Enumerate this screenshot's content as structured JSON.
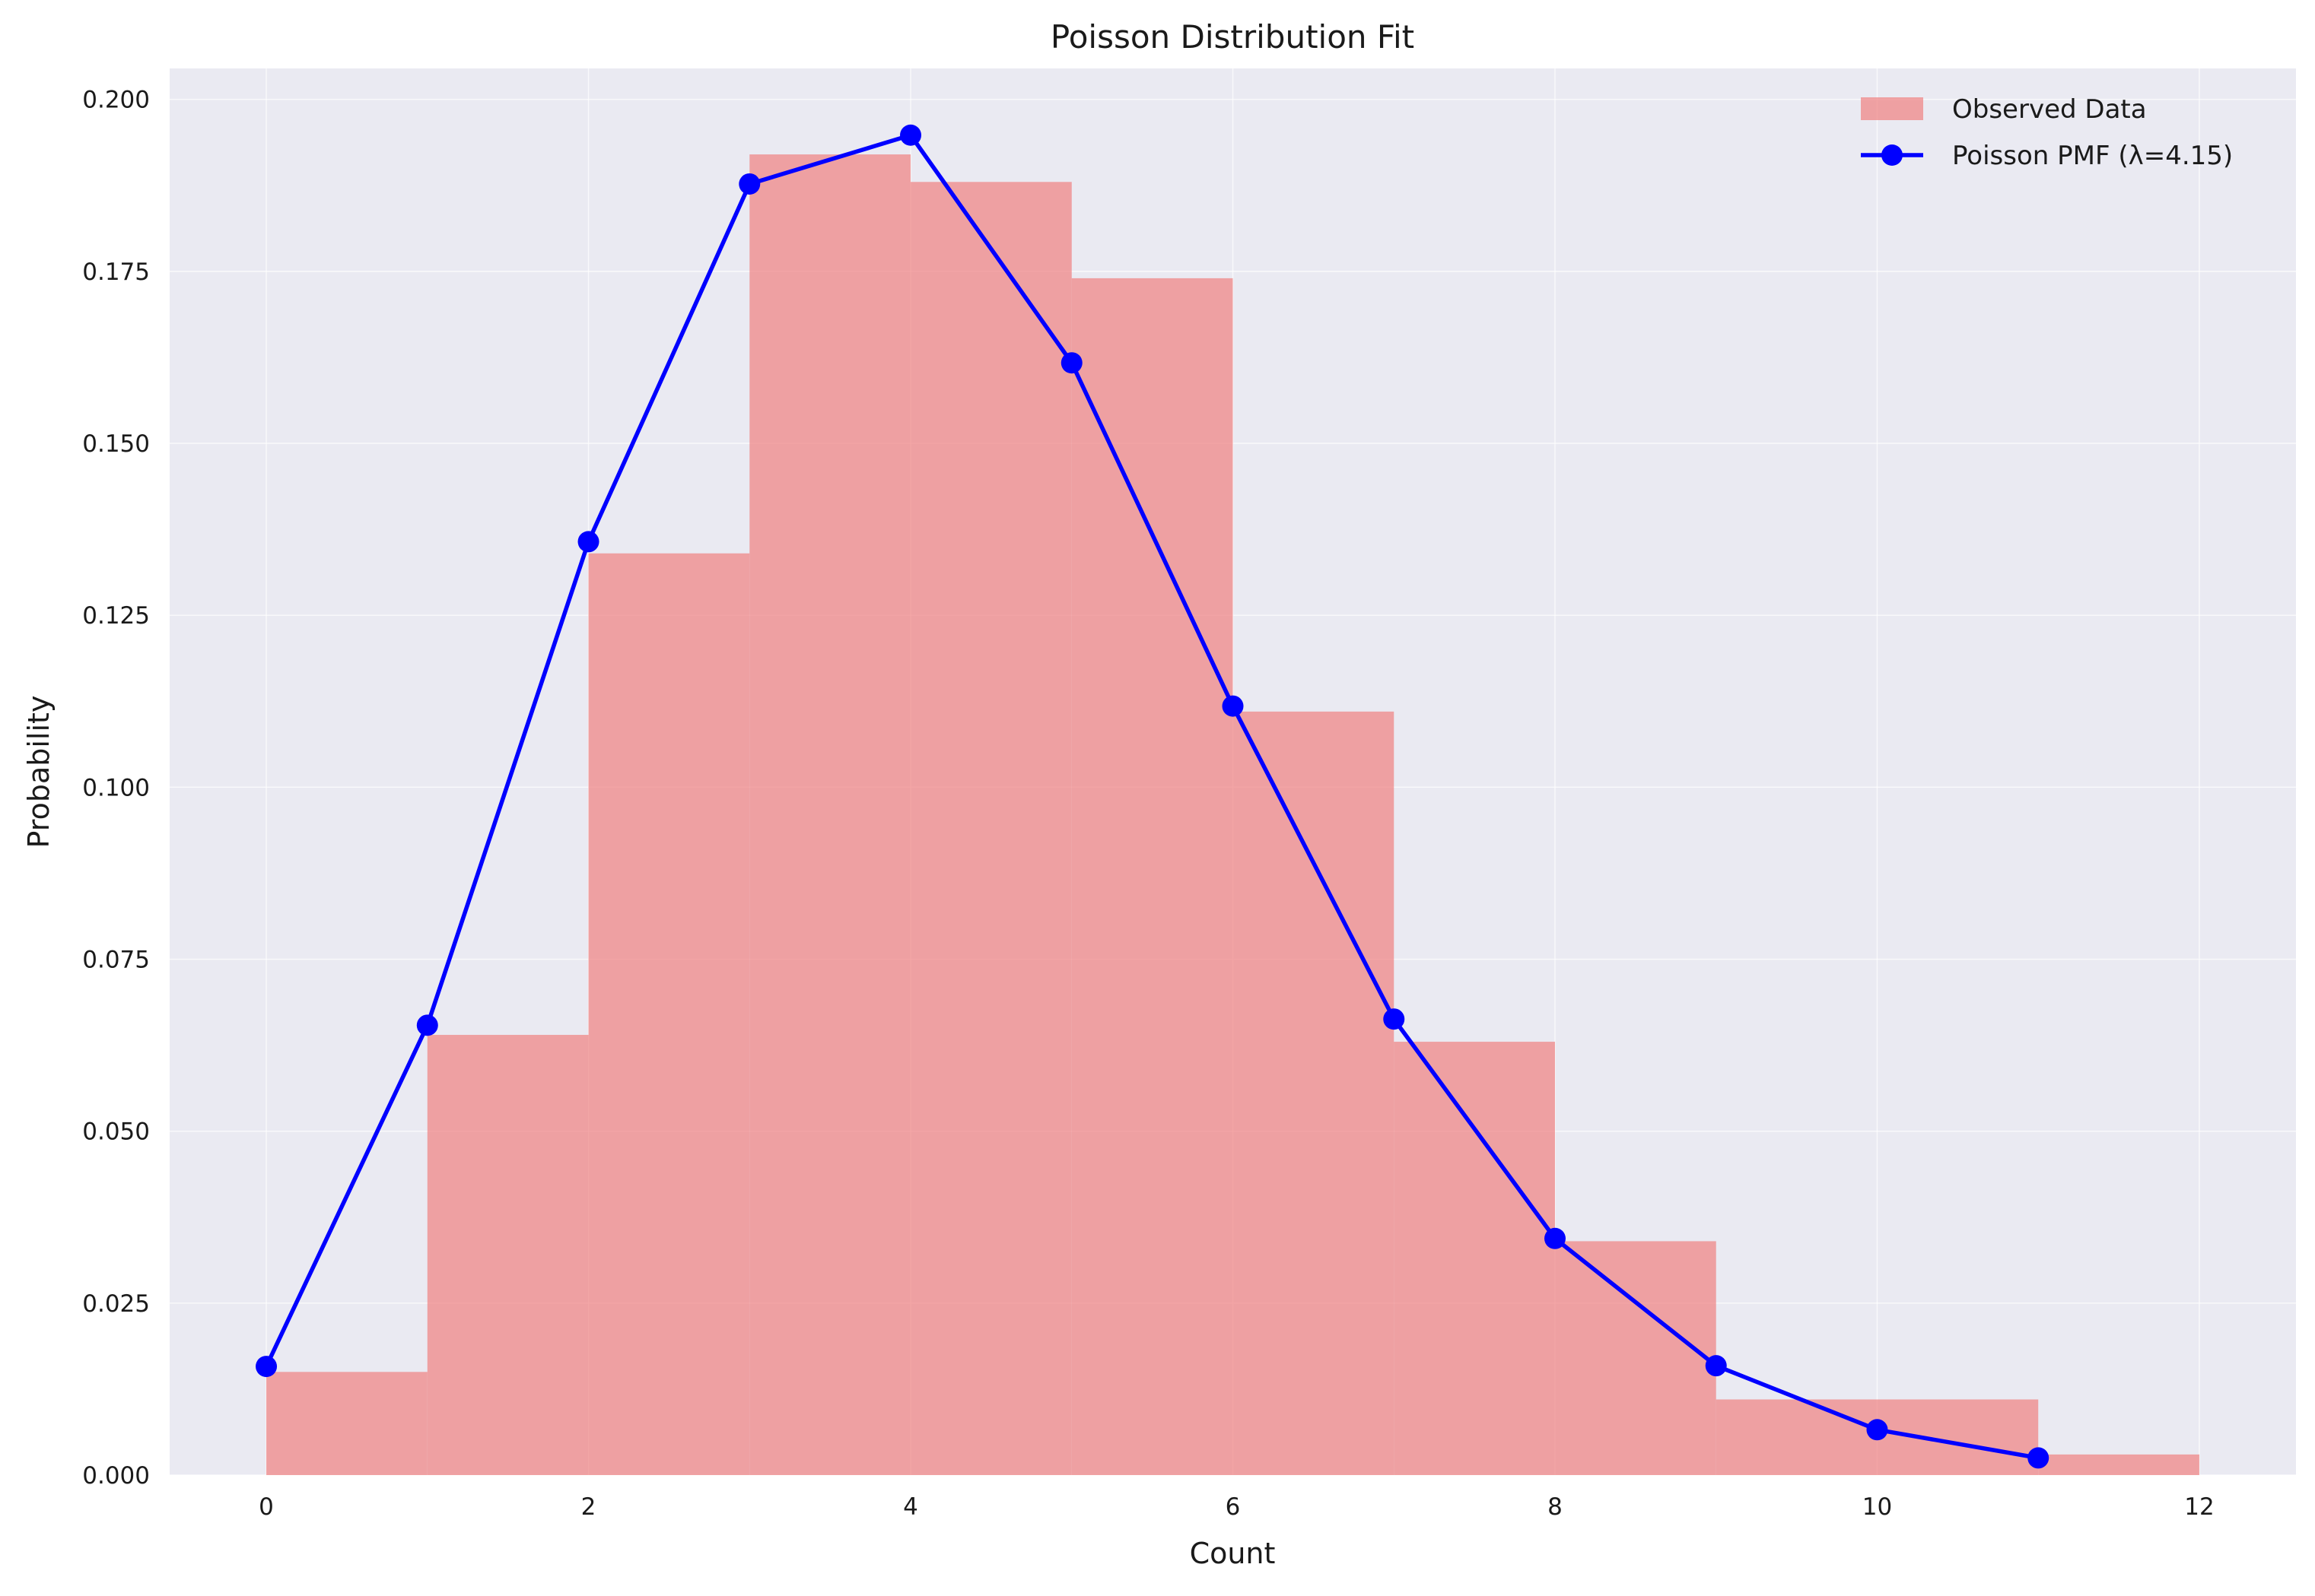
{
  "chart_data": {
    "type": "bar",
    "title": "Poisson Distribution Fit",
    "xlabel": "Count",
    "ylabel": "Probability",
    "xlim": [
      -0.6,
      12.6
    ],
    "ylim": [
      0,
      0.2045
    ],
    "xticks": [
      0,
      2,
      4,
      6,
      8,
      10,
      12
    ],
    "xtick_labels": [
      "0",
      "2",
      "4",
      "6",
      "8",
      "10",
      "12"
    ],
    "yticks": [
      0,
      0.025,
      0.05,
      0.075,
      0.1,
      0.125,
      0.15,
      0.175,
      0.2
    ],
    "ytick_labels": [
      "0.000",
      "0.025",
      "0.050",
      "0.075",
      "0.100",
      "0.125",
      "0.150",
      "0.175",
      "0.200"
    ],
    "grid": true,
    "legend_position": "top-right",
    "colors": {
      "background": "#eaeaf2",
      "bars": "#f08080",
      "line": "#0000ff"
    },
    "series": [
      {
        "name": "Observed Data",
        "kind": "histogram",
        "bin_edges": [
          0,
          1,
          2,
          3,
          4,
          5,
          6,
          7,
          8,
          9,
          10,
          11,
          12
        ],
        "values": [
          0.015,
          0.064,
          0.134,
          0.192,
          0.188,
          0.174,
          0.111,
          0.063,
          0.034,
          0.011,
          0.011,
          0.003
        ]
      },
      {
        "name": "Poisson PMF (λ=4.15)",
        "kind": "line",
        "x": [
          0,
          1,
          2,
          3,
          4,
          5,
          6,
          7,
          8,
          9,
          10,
          11
        ],
        "values": [
          0.0158,
          0.0654,
          0.1357,
          0.1877,
          0.1948,
          0.1617,
          0.1118,
          0.0663,
          0.0344,
          0.0159,
          0.0066,
          0.0025
        ]
      }
    ]
  }
}
